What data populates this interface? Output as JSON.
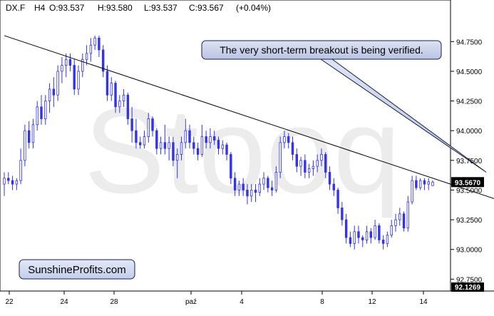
{
  "header": {
    "symbol": "DX.F",
    "timeframe": "H4",
    "open": "O:93.537",
    "high": "H:93.580",
    "low": "L:93.537",
    "close": "C:93.567",
    "change": "(+0.04%)"
  },
  "watermark": "Stooq",
  "callout": "The very short-term breakout is being verified.",
  "brand": "SunshineProfits.com",
  "colors": {
    "candle": "#3333ee",
    "trendline": "#000000",
    "badge_bg": "#000000",
    "badge_text": "#ffffff",
    "callout_bg": "#cfd6ec",
    "watermark": "#ececec"
  },
  "chart_data": {
    "type": "candlestick",
    "x_tick_labels": [
      "22",
      "24",
      "28",
      "paź",
      "4",
      "8",
      "12",
      "14"
    ],
    "y_tick_labels": [
      "92.7500",
      "93.0000",
      "93.2500",
      "93.5000",
      "93.7500",
      "94.0000",
      "94.2500",
      "94.5000",
      "94.7500"
    ],
    "ylim": [
      92.65,
      95.1
    ],
    "last_price_label": "93.5670",
    "bottom_value_label": "92.1269",
    "trendline": {
      "from": {
        "index": 0,
        "value": 94.8
      },
      "to": {
        "index": 130,
        "value": 93.3
      }
    },
    "callout_target": {
      "index": 117,
      "value": 93.65
    },
    "candles": [
      [
        93.55,
        93.65,
        93.45,
        93.6
      ],
      [
        93.6,
        93.65,
        93.55,
        93.58
      ],
      [
        93.58,
        93.62,
        93.5,
        93.55
      ],
      [
        93.55,
        93.6,
        93.5,
        93.58
      ],
      [
        93.58,
        93.85,
        93.55,
        93.75
      ],
      [
        93.75,
        94.05,
        93.7,
        94.0
      ],
      [
        94.0,
        94.08,
        93.85,
        93.9
      ],
      [
        93.9,
        94.1,
        93.85,
        94.05
      ],
      [
        94.05,
        94.25,
        94.0,
        94.2
      ],
      [
        94.2,
        94.3,
        94.05,
        94.1
      ],
      [
        94.1,
        94.3,
        94.05,
        94.25
      ],
      [
        94.25,
        94.4,
        94.15,
        94.35
      ],
      [
        94.35,
        94.45,
        94.2,
        94.3
      ],
      [
        94.3,
        94.55,
        94.25,
        94.5
      ],
      [
        94.5,
        94.62,
        94.4,
        94.55
      ],
      [
        94.55,
        94.65,
        94.45,
        94.6
      ],
      [
        94.6,
        94.65,
        94.5,
        94.55
      ],
      [
        94.55,
        94.6,
        94.3,
        94.35
      ],
      [
        94.35,
        94.55,
        94.3,
        94.5
      ],
      [
        94.5,
        94.65,
        94.45,
        94.6
      ],
      [
        94.6,
        94.72,
        94.55,
        94.65
      ],
      [
        94.65,
        94.78,
        94.58,
        94.72
      ],
      [
        94.72,
        94.8,
        94.68,
        94.78
      ],
      [
        94.78,
        94.8,
        94.62,
        94.68
      ],
      [
        94.68,
        94.72,
        94.45,
        94.5
      ],
      [
        94.5,
        94.55,
        94.25,
        94.3
      ],
      [
        94.3,
        94.45,
        94.25,
        94.4
      ],
      [
        94.4,
        94.42,
        94.15,
        94.2
      ],
      [
        94.2,
        94.3,
        94.15,
        94.25
      ],
      [
        94.25,
        94.35,
        94.2,
        94.3
      ],
      [
        94.3,
        94.32,
        94.05,
        94.1
      ],
      [
        94.1,
        94.2,
        93.9,
        94.0
      ],
      [
        94.0,
        94.1,
        93.85,
        93.9
      ],
      [
        93.9,
        93.95,
        93.85,
        93.88
      ],
      [
        93.88,
        94.0,
        93.85,
        93.95
      ],
      [
        93.95,
        94.15,
        93.9,
        94.1
      ],
      [
        94.1,
        94.12,
        93.95,
        94.0
      ],
      [
        94.0,
        94.02,
        93.8,
        93.85
      ],
      [
        93.85,
        93.95,
        93.8,
        93.9
      ],
      [
        93.9,
        94.05,
        93.8,
        93.85
      ],
      [
        93.85,
        93.95,
        93.75,
        93.9
      ],
      [
        93.9,
        93.95,
        93.7,
        93.75
      ],
      [
        93.75,
        93.85,
        93.6,
        93.8
      ],
      [
        93.8,
        93.95,
        93.75,
        93.9
      ],
      [
        93.9,
        94.1,
        93.85,
        94.0
      ],
      [
        94.0,
        94.05,
        93.85,
        93.9
      ],
      [
        93.9,
        93.95,
        93.8,
        93.85
      ],
      [
        93.85,
        93.9,
        93.75,
        93.8
      ],
      [
        93.8,
        94.05,
        93.78,
        93.95
      ],
      [
        93.95,
        94.0,
        93.85,
        93.9
      ],
      [
        93.9,
        94.02,
        93.85,
        93.95
      ],
      [
        93.95,
        94.0,
        93.88,
        93.92
      ],
      [
        93.92,
        93.95,
        93.8,
        93.85
      ],
      [
        93.85,
        93.92,
        93.8,
        93.88
      ],
      [
        93.88,
        93.9,
        93.75,
        93.8
      ],
      [
        93.8,
        93.82,
        93.55,
        93.6
      ],
      [
        93.6,
        93.65,
        93.45,
        93.5
      ],
      [
        93.5,
        93.58,
        93.45,
        93.55
      ],
      [
        93.55,
        93.6,
        93.45,
        93.5
      ],
      [
        93.5,
        93.55,
        93.38,
        93.45
      ],
      [
        93.45,
        93.55,
        93.4,
        93.5
      ],
      [
        93.5,
        93.55,
        93.4,
        93.48
      ],
      [
        93.48,
        93.6,
        93.45,
        93.55
      ],
      [
        93.55,
        93.65,
        93.5,
        93.6
      ],
      [
        93.6,
        93.62,
        93.48,
        93.52
      ],
      [
        93.52,
        93.58,
        93.45,
        93.5
      ],
      [
        93.5,
        93.7,
        93.48,
        93.65
      ],
      [
        93.65,
        93.95,
        93.6,
        93.9
      ],
      [
        93.9,
        94.0,
        93.85,
        93.95
      ],
      [
        93.95,
        93.98,
        93.85,
        93.9
      ],
      [
        93.9,
        93.95,
        93.75,
        93.8
      ],
      [
        93.8,
        93.85,
        93.65,
        93.7
      ],
      [
        93.7,
        93.78,
        93.62,
        93.75
      ],
      [
        93.75,
        93.8,
        93.6,
        93.65
      ],
      [
        93.65,
        93.72,
        93.6,
        93.68
      ],
      [
        93.68,
        93.75,
        93.62,
        93.7
      ],
      [
        93.7,
        93.8,
        93.65,
        93.75
      ],
      [
        93.75,
        93.85,
        93.7,
        93.8
      ],
      [
        93.8,
        93.82,
        93.6,
        93.65
      ],
      [
        93.65,
        93.7,
        93.5,
        93.55
      ],
      [
        93.55,
        93.6,
        93.45,
        93.5
      ],
      [
        93.5,
        93.52,
        93.3,
        93.35
      ],
      [
        93.35,
        93.4,
        93.2,
        93.25
      ],
      [
        93.25,
        93.3,
        93.05,
        93.1
      ],
      [
        93.1,
        93.15,
        93.02,
        93.05
      ],
      [
        93.05,
        93.2,
        93.0,
        93.15
      ],
      [
        93.15,
        93.2,
        93.05,
        93.1
      ],
      [
        93.1,
        93.12,
        93.02,
        93.08
      ],
      [
        93.08,
        93.2,
        93.05,
        93.15
      ],
      [
        93.15,
        93.18,
        93.05,
        93.1
      ],
      [
        93.1,
        93.25,
        93.08,
        93.2
      ],
      [
        93.2,
        93.22,
        93.05,
        93.08
      ],
      [
        93.08,
        93.12,
        93.0,
        93.05
      ],
      [
        93.05,
        93.15,
        93.02,
        93.12
      ],
      [
        93.12,
        93.25,
        93.1,
        93.2
      ],
      [
        93.2,
        93.3,
        93.15,
        93.25
      ],
      [
        93.25,
        93.35,
        93.2,
        93.3
      ],
      [
        93.3,
        93.32,
        93.15,
        93.18
      ],
      [
        93.18,
        93.45,
        93.15,
        93.4
      ],
      [
        93.4,
        93.62,
        93.38,
        93.58
      ],
      [
        93.58,
        93.62,
        93.5,
        93.52
      ],
      [
        93.52,
        93.6,
        93.5,
        93.58
      ],
      [
        93.58,
        93.6,
        93.5,
        93.55
      ],
      [
        93.55,
        93.6,
        93.5,
        93.57
      ],
      [
        93.537,
        93.58,
        93.537,
        93.567
      ]
    ]
  }
}
